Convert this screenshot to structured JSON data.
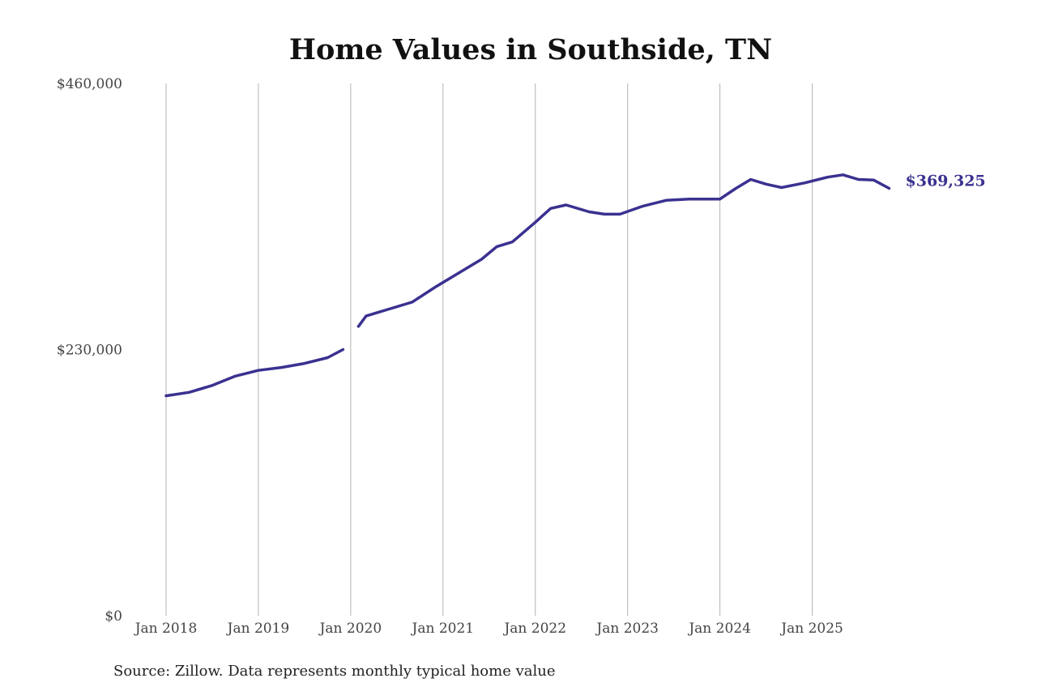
{
  "chart_data": {
    "type": "line",
    "title": "Home Values in Southside, TN",
    "xlabel": "",
    "ylabel": "",
    "ylim": [
      0,
      460000
    ],
    "y_ticks": [
      0,
      230000,
      460000
    ],
    "y_tick_labels": [
      "$0",
      "$230,000",
      "$460,000"
    ],
    "x_range": [
      "2018-01",
      "2025-12"
    ],
    "x_tick_labels": [
      "Jan 2018",
      "Jan 2019",
      "Jan 2020",
      "Jan 2021",
      "Jan 2022",
      "Jan 2023",
      "Jan 2024",
      "Jan 2025"
    ],
    "grid": "vertical",
    "legend": "none",
    "series": [
      {
        "color": "#3a3190",
        "points": [
          [
            "2018-01",
            190000
          ],
          [
            "2018-04",
            193000
          ],
          [
            "2018-07",
            199000
          ],
          [
            "2018-10",
            207000
          ],
          [
            "2019-01",
            212000
          ],
          [
            "2019-04",
            214500
          ],
          [
            "2019-07",
            218000
          ],
          [
            "2019-10",
            223000
          ],
          [
            "2019-12",
            230000
          ],
          null,
          [
            "2020-02",
            250000
          ],
          [
            "2020-03",
            259000
          ],
          [
            "2020-06",
            265000
          ],
          [
            "2020-09",
            271000
          ],
          [
            "2020-12",
            284000
          ],
          [
            "2021-03",
            296000
          ],
          [
            "2021-06",
            308000
          ],
          [
            "2021-08",
            319000
          ],
          [
            "2021-10",
            323000
          ],
          [
            "2022-01",
            340000
          ],
          [
            "2022-03",
            352000
          ],
          [
            "2022-05",
            355000
          ],
          [
            "2022-08",
            349000
          ],
          [
            "2022-10",
            347000
          ],
          [
            "2022-12",
            347000
          ],
          [
            "2023-03",
            354000
          ],
          [
            "2023-06",
            359000
          ],
          [
            "2023-09",
            360000
          ],
          [
            "2024-01",
            360000
          ],
          [
            "2024-03",
            369000
          ],
          [
            "2024-05",
            377000
          ],
          [
            "2024-07",
            373000
          ],
          [
            "2024-09",
            370000
          ],
          [
            "2024-12",
            374000
          ],
          [
            "2025-03",
            379000
          ],
          [
            "2025-05",
            381000
          ],
          [
            "2025-07",
            377000
          ],
          [
            "2025-09",
            376500
          ],
          [
            "2025-11",
            369325
          ]
        ],
        "end_label": "$369,325"
      }
    ]
  },
  "footer": {
    "source": "Source: Zillow. Data represents monthly typical home value"
  }
}
